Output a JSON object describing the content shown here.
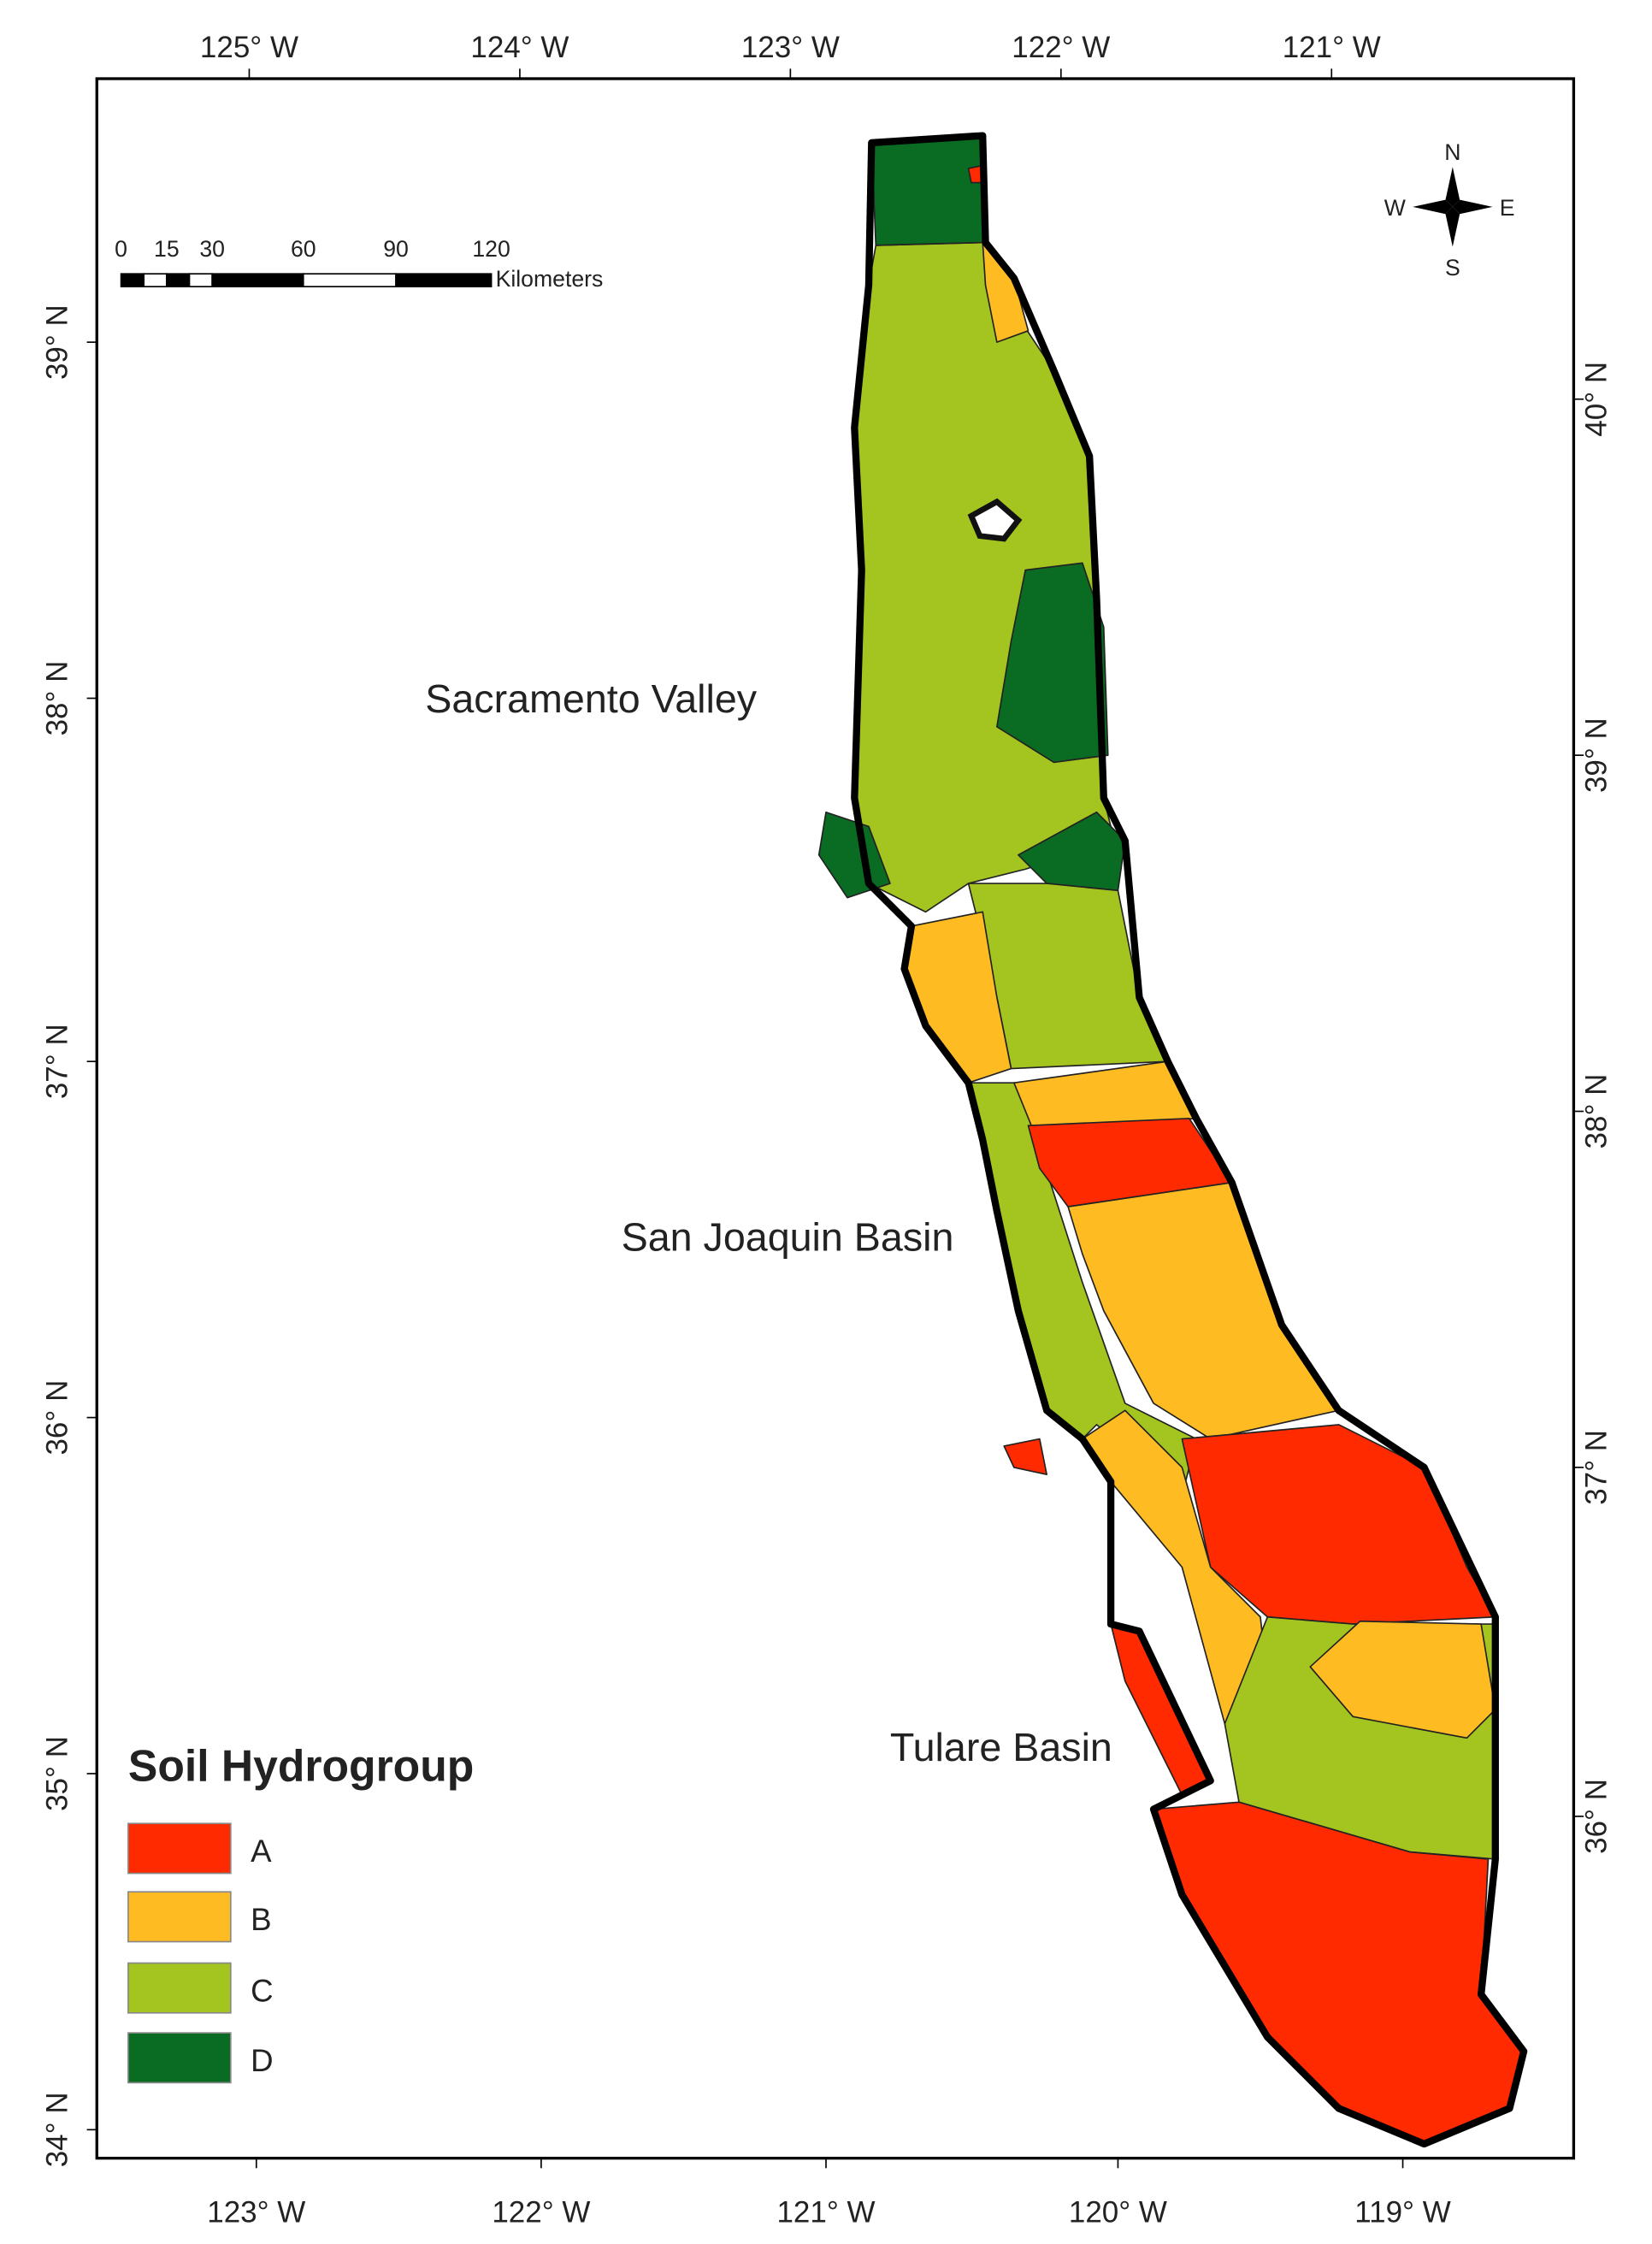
{
  "frame": {
    "top_labels": [
      "125° W",
      "124° W",
      "123° W",
      "122° W",
      "121° W"
    ],
    "bottom_labels": [
      "123° W",
      "122° W",
      "121° W",
      "120° W",
      "119° W"
    ],
    "left_labels": [
      "39° N",
      "38° N",
      "37° N",
      "36° N",
      "35° N",
      "34° N"
    ],
    "right_labels": [
      "40° N",
      "39° N",
      "38° N",
      "37° N",
      "36° N"
    ]
  },
  "scale_bar": {
    "labels": [
      "0",
      "15",
      "30",
      "60",
      "90",
      "120"
    ],
    "unit": "Kilometers"
  },
  "north_arrow": {
    "n": "N",
    "e": "E",
    "s": "S",
    "w": "W"
  },
  "regions": [
    "Sacramento Valley",
    "San Joaquin Basin",
    "Tulare Basin"
  ],
  "legend": {
    "title": "Soil Hydrogroup",
    "items": [
      {
        "label": "A",
        "color": "#ff2a00"
      },
      {
        "label": "B",
        "color": "#ffbb22"
      },
      {
        "label": "C",
        "color": "#a4c520"
      },
      {
        "label": "D",
        "color": "#0a6b22"
      }
    ]
  }
}
